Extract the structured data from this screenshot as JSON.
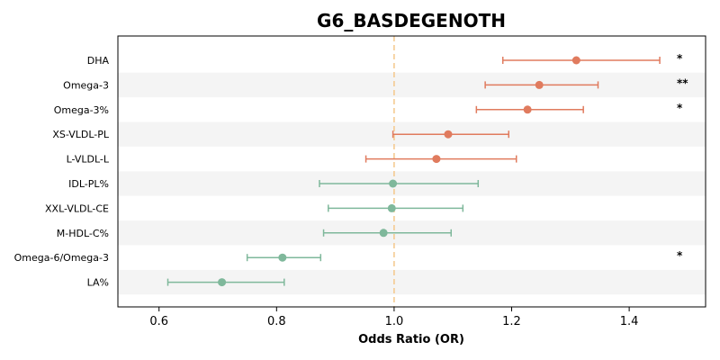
{
  "chart_data": {
    "type": "forest",
    "title": "G6_BASDEGENOTH",
    "xlabel": "Odds Ratio (OR)",
    "ylabel": "",
    "xlim": [
      0.53,
      1.53
    ],
    "xticks": [
      0.6,
      0.8,
      1.0,
      1.2,
      1.4
    ],
    "reference_line": 1.0,
    "alternating_row_shading": true,
    "grid": false,
    "colors": {
      "increased": "#e07b5e",
      "decreased": "#7fb89b",
      "reference": "#f5c78a",
      "row_shade": "#f4f4f4"
    },
    "rows": [
      {
        "label": "DHA",
        "or": 1.31,
        "ci_low": 1.185,
        "ci_high": 1.452,
        "sig": "*",
        "direction": "increased"
      },
      {
        "label": "Omega-3",
        "or": 1.247,
        "ci_low": 1.155,
        "ci_high": 1.347,
        "sig": "**",
        "direction": "increased"
      },
      {
        "label": "Omega-3%",
        "or": 1.227,
        "ci_low": 1.14,
        "ci_high": 1.322,
        "sig": "*",
        "direction": "increased"
      },
      {
        "label": "XS-VLDL-PL",
        "or": 1.092,
        "ci_low": 0.998,
        "ci_high": 1.195,
        "sig": "",
        "direction": "increased"
      },
      {
        "label": "L-VLDL-L",
        "or": 1.072,
        "ci_low": 0.952,
        "ci_high": 1.208,
        "sig": "",
        "direction": "increased"
      },
      {
        "label": "IDL-PL%",
        "or": 0.998,
        "ci_low": 0.873,
        "ci_high": 1.143,
        "sig": "",
        "direction": "decreased"
      },
      {
        "label": "XXL-VLDL-CE",
        "or": 0.996,
        "ci_low": 0.888,
        "ci_high": 1.117,
        "sig": "",
        "direction": "decreased"
      },
      {
        "label": "M-HDL-C%",
        "or": 0.982,
        "ci_low": 0.88,
        "ci_high": 1.097,
        "sig": "",
        "direction": "decreased"
      },
      {
        "label": "Omega-6/Omega-3",
        "or": 0.81,
        "ci_low": 0.75,
        "ci_high": 0.875,
        "sig": "*",
        "direction": "decreased"
      },
      {
        "label": "LA%",
        "or": 0.707,
        "ci_low": 0.615,
        "ci_high": 0.813,
        "sig": "",
        "direction": "decreased"
      }
    ]
  }
}
